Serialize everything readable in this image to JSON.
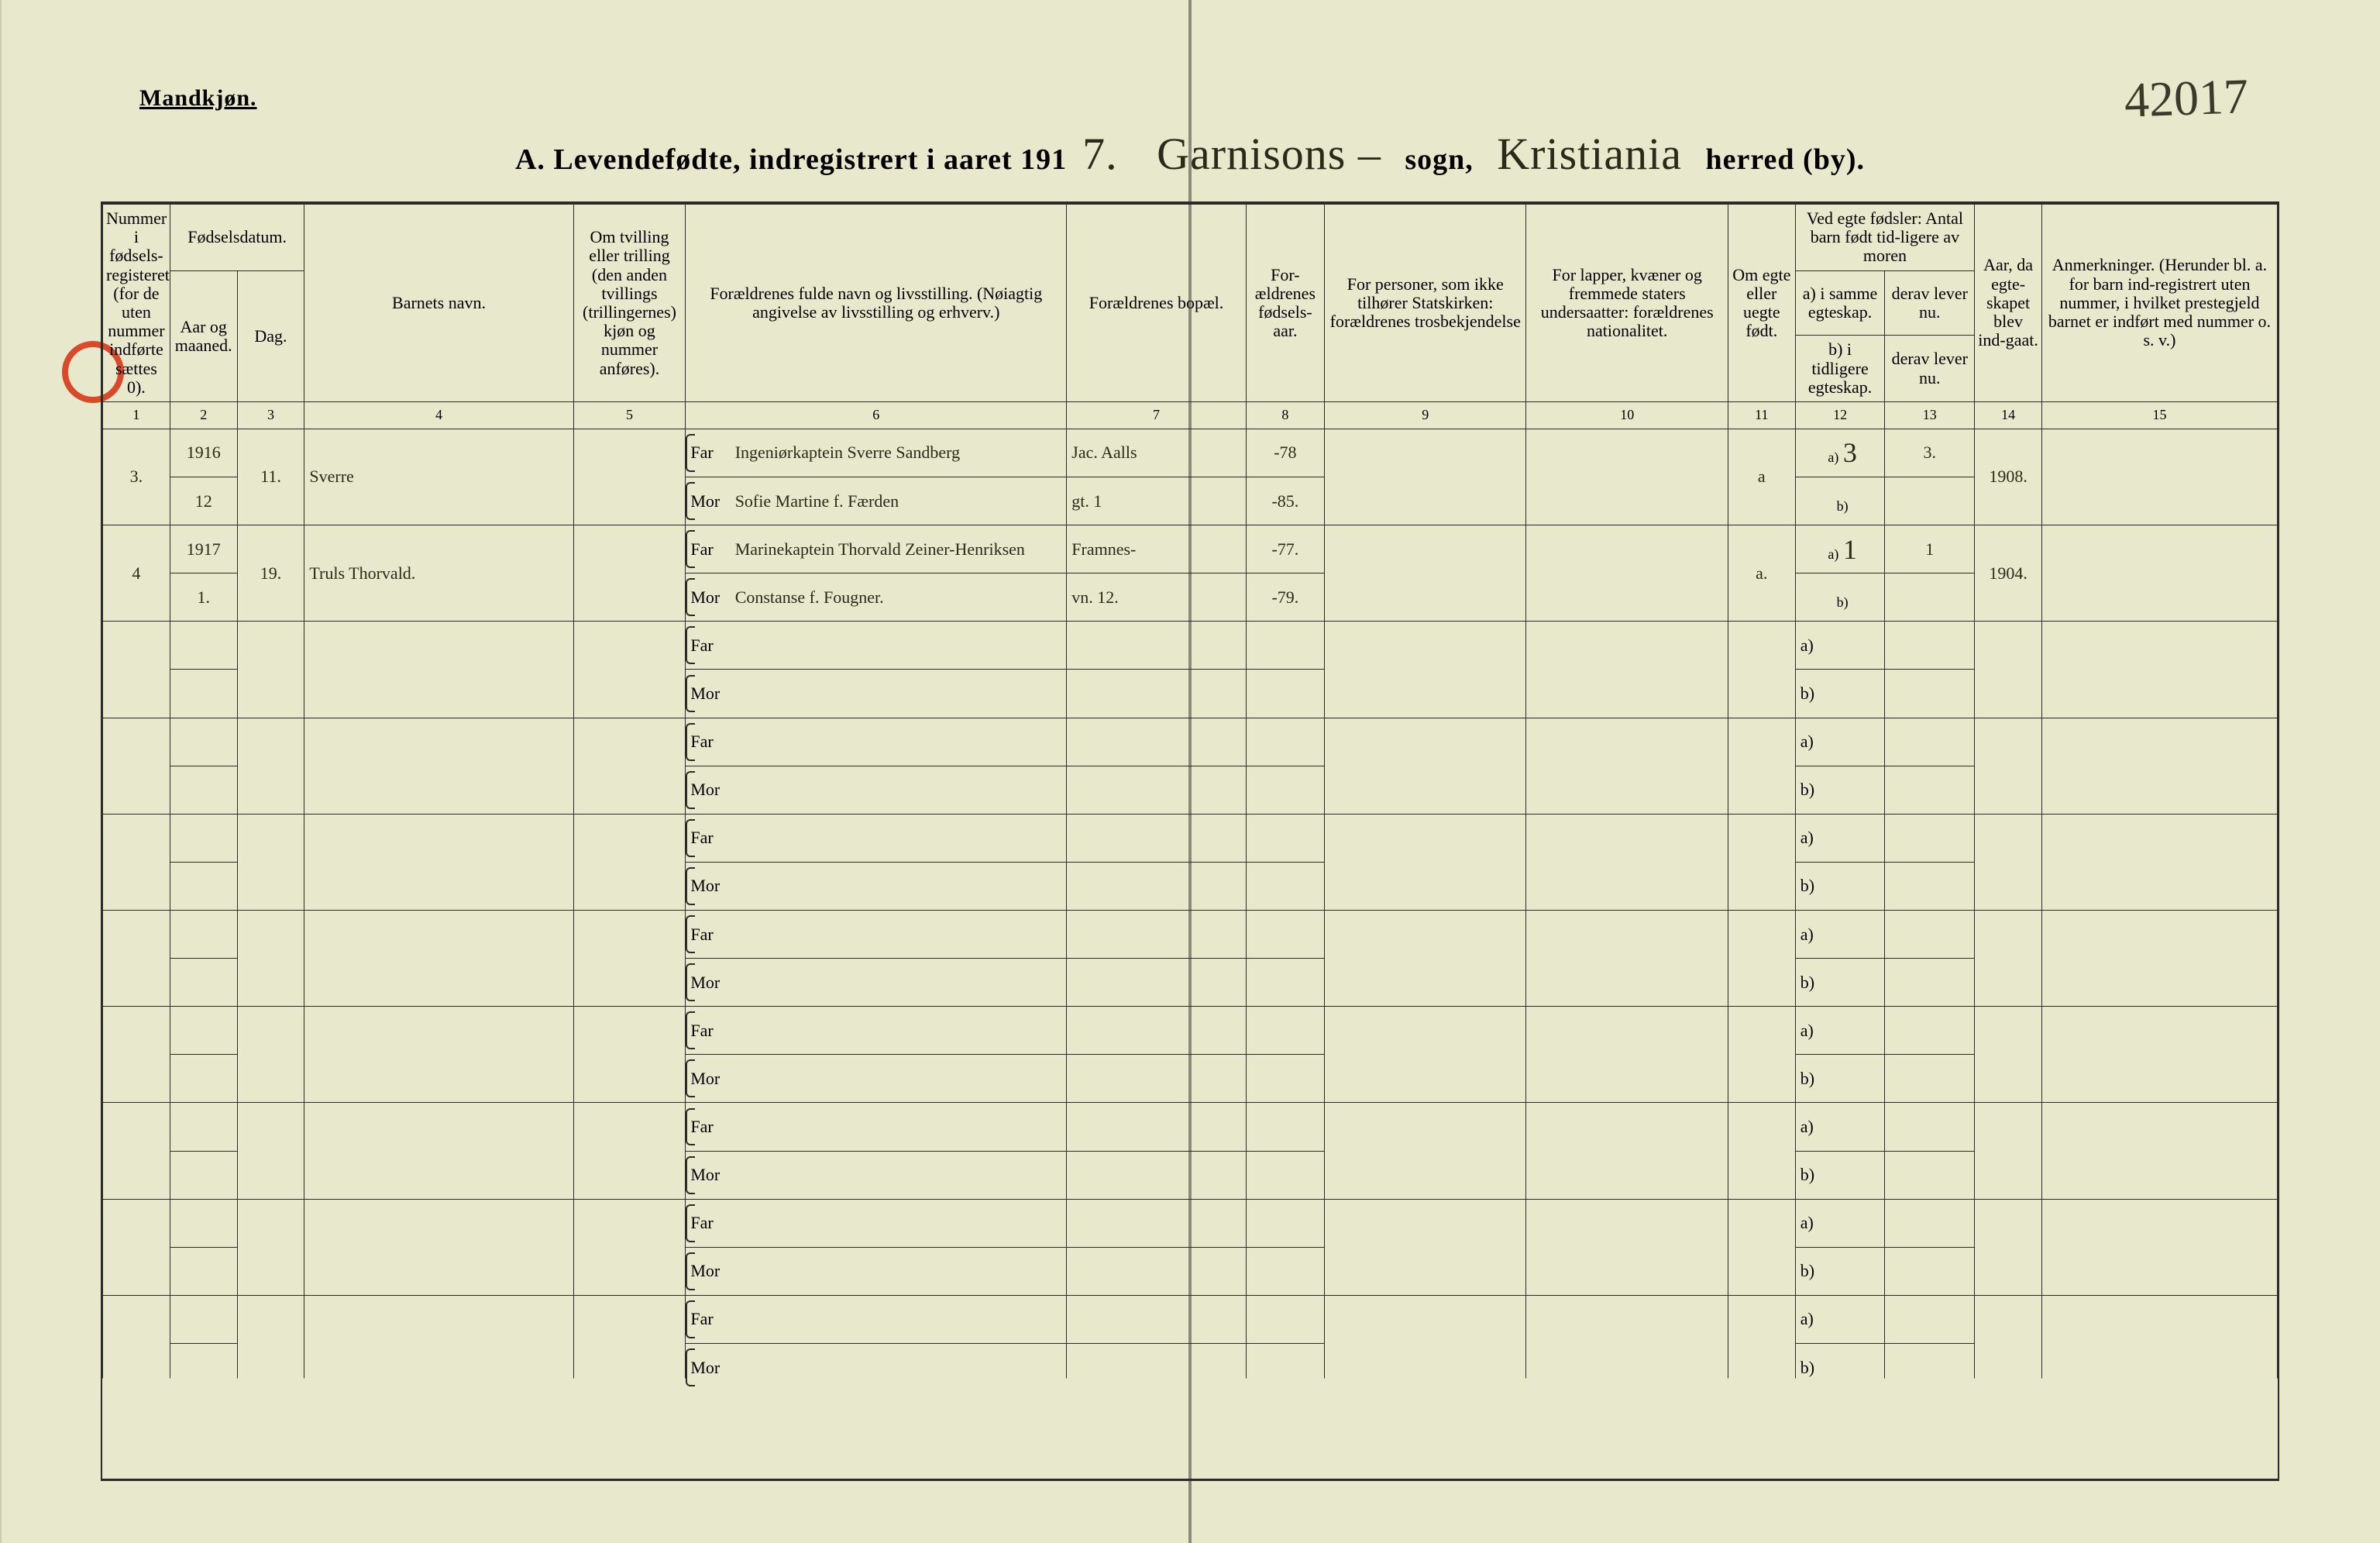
{
  "page": {
    "gender_label": "Mandkjøn.",
    "page_number_handwritten": "42017",
    "title_prefix": "A.  Levendefødte, indregistrert i aaret 191",
    "year_digit": "7.",
    "sogn_label": "sogn,",
    "sogn_value": "Garnisons  –",
    "herred_label": "herred (by).",
    "herred_value": "Kristiania"
  },
  "columns": {
    "c1": "Nummer i fødsels-registeret (for de uten nummer indførte sættes 0).",
    "c23_group": "Fødselsdatum.",
    "c2": "Aar og maaned.",
    "c3": "Dag.",
    "c4": "Barnets navn.",
    "c5": "Om tvilling eller trilling (den anden tvillings (trillingernes) kjøn og nummer anføres).",
    "c6": "Forældrenes fulde navn og livsstilling. (Nøiagtig angivelse av livsstilling og erhverv.)",
    "c7": "Forældrenes bopæl.",
    "c8": "For-ældrenes fødsels-aar.",
    "c9": "For personer, som ikke tilhører Statskirken: forældrenes trosbekjendelse",
    "c10": "For lapper, kvæner og fremmede staters undersaatter: forældrenes nationalitet.",
    "c11": "Om egte eller uegte født.",
    "c12_13_group": "Ved egte fødsler: Antal barn født tid-ligere av moren",
    "c12": "a) i samme egteskap.",
    "c13": "derav lever nu.",
    "c12b": "b) i tidligere egteskap.",
    "c13b": "derav lever nu.",
    "c14": "Aar, da egte-skapet blev ind-gaat.",
    "c15": "Anmerkninger. (Herunder bl. a. for barn ind-registrert uten nummer, i hvilket prestegjeld barnet er indført med nummer o. s. v.)",
    "nums": [
      "1",
      "2",
      "3",
      "4",
      "5",
      "6",
      "7",
      "8",
      "9",
      "10",
      "11",
      "12",
      "13",
      "14",
      "15"
    ]
  },
  "labels": {
    "far": "Far",
    "mor": "Mor",
    "a": "a)",
    "b": "b)"
  },
  "entries": [
    {
      "num": "3.",
      "year_month_top": "1916",
      "year_month_bot": "12",
      "day": "11.",
      "child_name": "Sverre",
      "twin": "",
      "father_name": "Ingeniørkaptein Sverre Sandberg",
      "mother_name": "Sofie Martine f. Færden",
      "residence_top": "Jac. Aalls",
      "residence_bot": "gt. 1",
      "father_birth": "-78",
      "mother_birth": "-85.",
      "religion": "",
      "nationality": "",
      "legitimacy": "a",
      "a_same_marriage": "3",
      "a_living": "3.",
      "b_prev_marriage": "",
      "b_living": "",
      "marriage_year": "1908.",
      "remarks": ""
    },
    {
      "num": "4",
      "year_month_top": "1917",
      "year_month_bot": "1.",
      "day": "19.",
      "child_name": "Truls Thorvald.",
      "twin": "",
      "father_name": "Marinekaptein Thorvald Zeiner-Henriksen",
      "mother_name": "Constanse f. Fougner.",
      "residence_top": "Framnes-",
      "residence_bot": "vn. 12.",
      "father_birth": "-77.",
      "mother_birth": "-79.",
      "religion": "",
      "nationality": "",
      "legitimacy": "a.",
      "a_same_marriage": "1",
      "a_living": "1",
      "b_prev_marriage": "",
      "b_living": "",
      "marriage_year": "1904.",
      "remarks": ""
    }
  ],
  "blank_rows": 8,
  "colors": {
    "paper": "#e8e8cc",
    "ink": "#2a2a2a",
    "handwriting": "#2a2a1a",
    "margin_circle": "#d84a2a"
  }
}
